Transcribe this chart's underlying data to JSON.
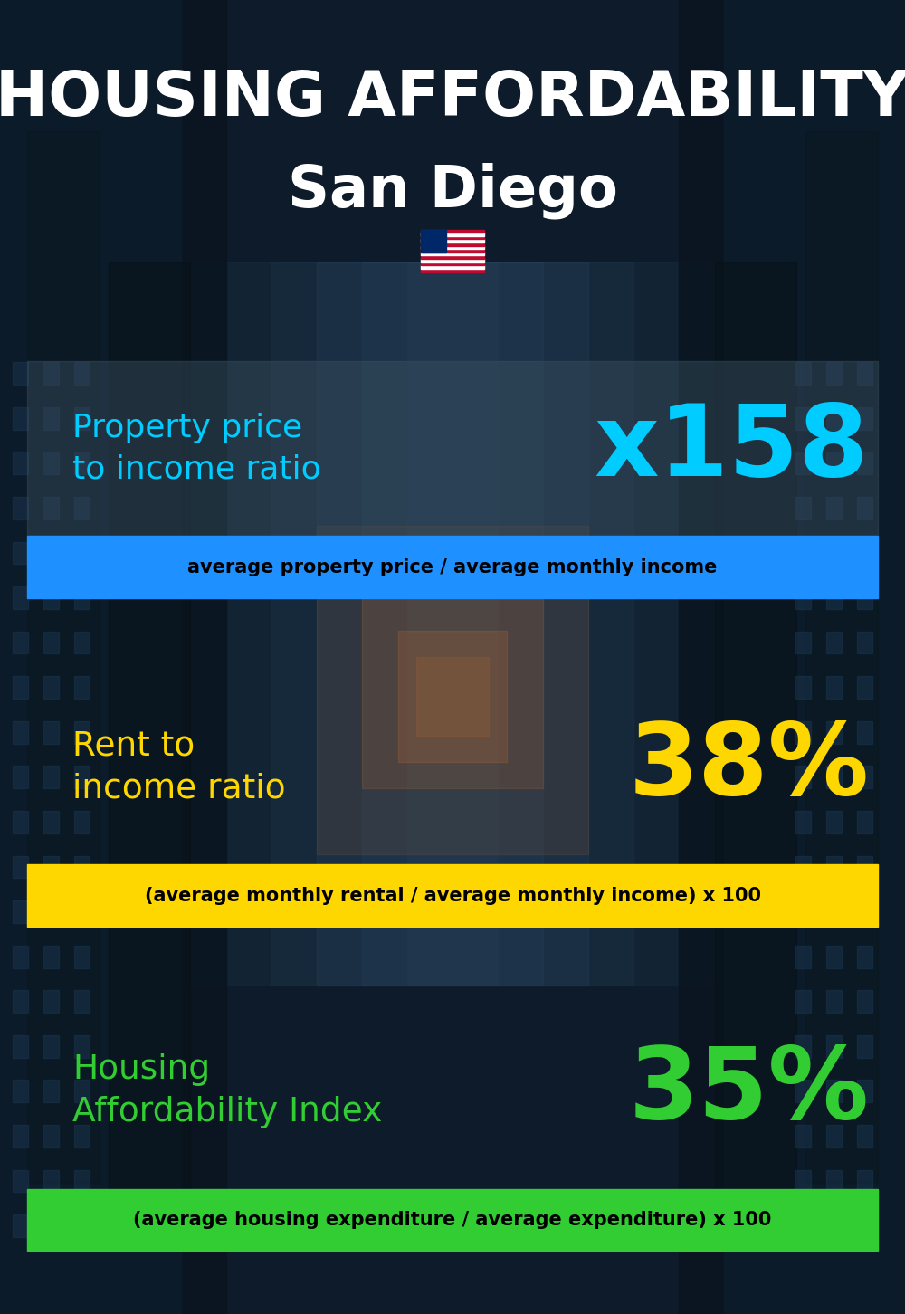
{
  "title_line1": "HOUSING AFFORDABILITY",
  "title_line2": "San Diego",
  "bg_color": "#0d1b2a",
  "section1_label": "Property price\nto income ratio",
  "section1_value": "x158",
  "section1_label_color": "#00ccff",
  "section1_value_color": "#00ccff",
  "section1_banner": "average property price / average monthly income",
  "section1_banner_bg": "#1e90ff",
  "section1_banner_text_color": "#000000",
  "section2_label": "Rent to\nincome ratio",
  "section2_value": "38%",
  "section2_label_color": "#ffd700",
  "section2_value_color": "#ffd700",
  "section2_banner": "(average monthly rental / average monthly income) x 100",
  "section2_banner_bg": "#ffd700",
  "section2_banner_text_color": "#000000",
  "section3_label": "Housing\nAffordability Index",
  "section3_value": "35%",
  "section3_label_color": "#32cd32",
  "section3_value_color": "#32cd32",
  "section3_banner": "(average housing expenditure / average expenditure) x 100",
  "section3_banner_bg": "#32cd32",
  "section3_banner_text_color": "#000000",
  "fig_width": 10.0,
  "fig_height": 14.52
}
